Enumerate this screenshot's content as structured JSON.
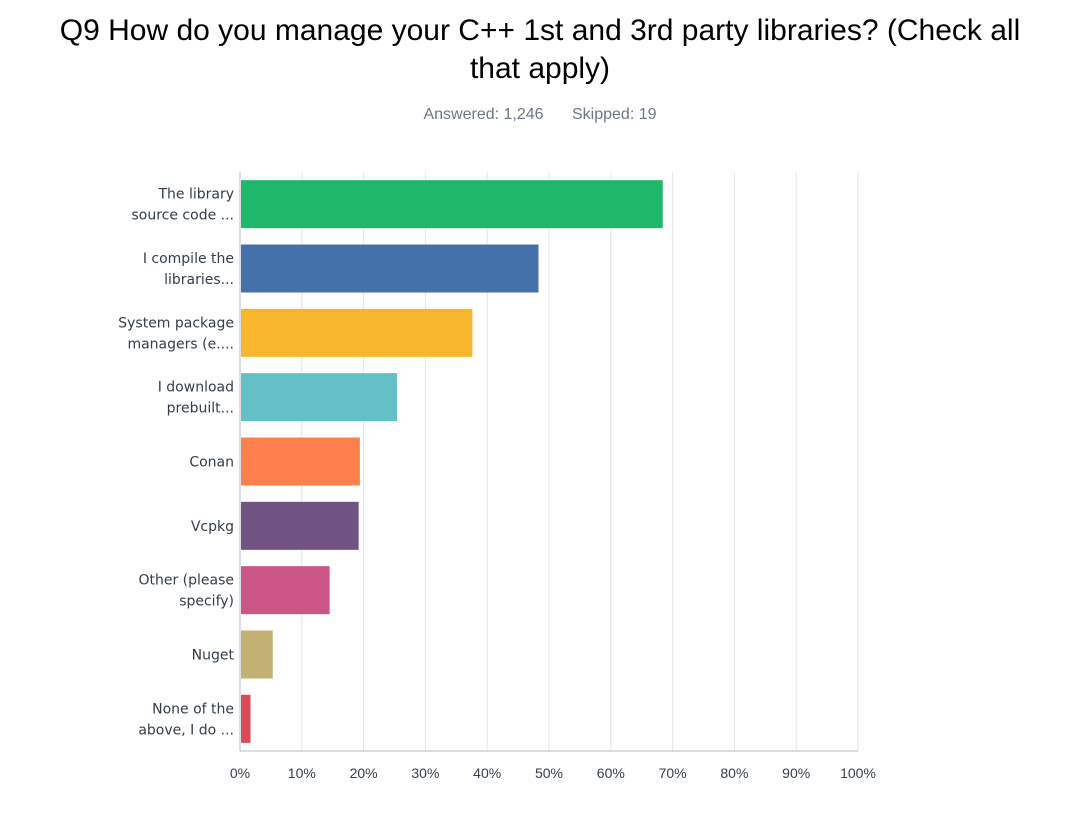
{
  "header": {
    "title_line1": "Q9 How do you manage your C++ 1st and 3rd party libraries? (Check all",
    "title_line2": "that apply)",
    "answered": "Answered: 1,246",
    "skipped": "Skipped: 19"
  },
  "chart_data": {
    "type": "bar",
    "orientation": "horizontal",
    "categories": [
      [
        "The library",
        "source code ..."
      ],
      [
        "I compile the",
        "libraries..."
      ],
      [
        "System package",
        "managers (e...."
      ],
      [
        "I download",
        "prebuilt..."
      ],
      [
        "Conan"
      ],
      [
        "Vcpkg"
      ],
      [
        "Other (please",
        "specify)"
      ],
      [
        "Nuget"
      ],
      [
        "None of the",
        "above, I do ..."
      ]
    ],
    "values": [
      68.4,
      48.3,
      37.6,
      25.4,
      19.4,
      19.2,
      14.5,
      5.3,
      1.7
    ],
    "colors": [
      "#1fb86b",
      "#4571aa",
      "#f8b62f",
      "#62c0c6",
      "#fd804d",
      "#6f5383",
      "#cc5587",
      "#c2b073",
      "#d94a57"
    ],
    "xlim": [
      0,
      100
    ],
    "xticks": [
      "0%",
      "10%",
      "20%",
      "30%",
      "40%",
      "50%",
      "60%",
      "70%",
      "80%",
      "90%",
      "100%"
    ],
    "grid": true
  }
}
